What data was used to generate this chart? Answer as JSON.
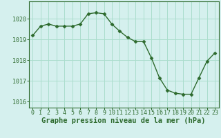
{
  "x": [
    0,
    1,
    2,
    3,
    4,
    5,
    6,
    7,
    8,
    9,
    10,
    11,
    12,
    13,
    14,
    15,
    16,
    17,
    18,
    19,
    20,
    21,
    22,
    23
  ],
  "y": [
    1019.2,
    1019.65,
    1019.75,
    1019.65,
    1019.65,
    1019.65,
    1019.75,
    1020.25,
    1020.3,
    1020.25,
    1019.75,
    1019.4,
    1019.1,
    1018.9,
    1018.9,
    1018.1,
    1017.15,
    1016.55,
    1016.4,
    1016.35,
    1016.35,
    1017.15,
    1017.95,
    1018.35
  ],
  "line_color": "#2d6a2d",
  "marker": "D",
  "marker_size": 2.5,
  "bg_color": "#d5f0ee",
  "grid_color": "#aaddcc",
  "axis_color": "#2d6a2d",
  "xlabel": "Graphe pression niveau de la mer (hPa)",
  "xlabel_fontsize": 7.5,
  "xlabel_color": "#2d6a2d",
  "ylim": [
    1015.7,
    1020.85
  ],
  "xlim": [
    -0.5,
    23.5
  ],
  "xtick_labels": [
    "0",
    "1",
    "2",
    "3",
    "4",
    "5",
    "6",
    "7",
    "8",
    "9",
    "10",
    "11",
    "12",
    "13",
    "14",
    "15",
    "16",
    "17",
    "18",
    "19",
    "20",
    "21",
    "22",
    "23"
  ],
  "yticks": [
    1016,
    1017,
    1018,
    1019,
    1020
  ],
  "tick_fontsize": 6.0
}
